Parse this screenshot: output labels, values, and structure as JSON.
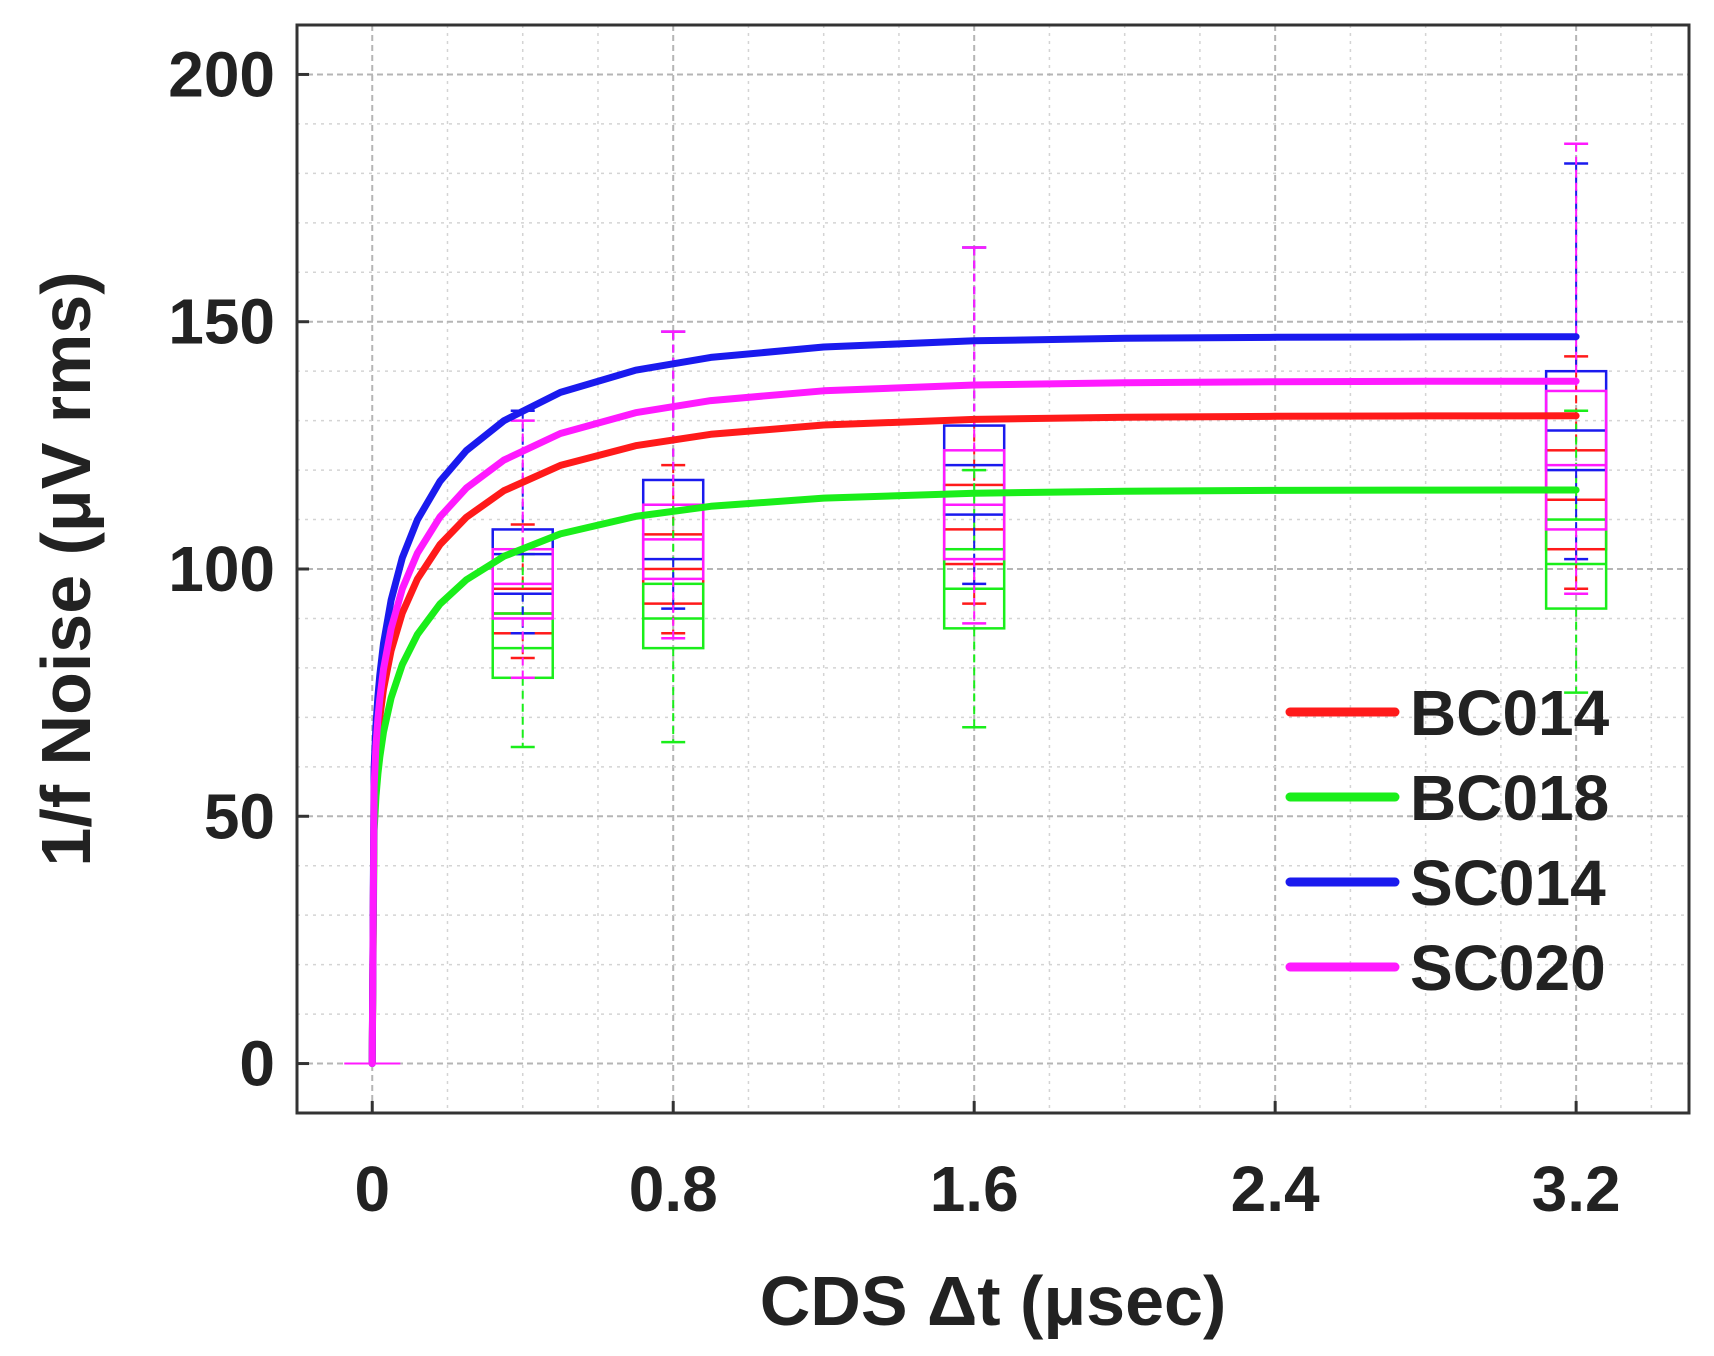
{
  "chart_data": {
    "type": "line",
    "title": "",
    "xlabel": "CDS Δt (μsec)",
    "ylabel": "1/f Noise (μV rms)",
    "xlim": [
      -0.2,
      3.5
    ],
    "ylim": [
      -10,
      210
    ],
    "x_ticks": [
      0,
      0.8,
      1.6,
      2.4,
      3.2
    ],
    "x_tick_labels": [
      "0",
      "0.8",
      "1.6",
      "2.4",
      "3.2"
    ],
    "y_ticks": [
      0,
      50,
      100,
      150,
      200
    ],
    "y_tick_labels": [
      "0",
      "50",
      "100",
      "150",
      "200"
    ],
    "grid": true,
    "legend_position": "bottom-right",
    "fit_curve_points": [
      0.005,
      0.01,
      0.015,
      0.02,
      0.03,
      0.05,
      0.08,
      0.12,
      0.18,
      0.25,
      0.35,
      0.5,
      0.7,
      0.9,
      1.2,
      1.6,
      2.0,
      2.4,
      2.8,
      3.2
    ],
    "box_x": [
      0.4,
      0.8,
      1.6,
      3.2
    ],
    "series": [
      {
        "name": "BC014",
        "color": "#ff1a1a",
        "fit": {
          "model": "saturating",
          "plateau": 131,
          "tau": 0.45,
          "beta": 0.2
        },
        "boxes": [
          {
            "x": 0.4,
            "whisker_low": 82,
            "q1": 87,
            "median": 91,
            "q3": 96,
            "whisker_high": 109
          },
          {
            "x": 0.8,
            "whisker_low": 87,
            "q1": 93,
            "median": 100,
            "q3": 107,
            "whisker_high": 121
          },
          {
            "x": 1.6,
            "whisker_low": 93,
            "q1": 101,
            "median": 108,
            "q3": 117,
            "whisker_high": 130
          },
          {
            "x": 3.2,
            "whisker_low": 96,
            "q1": 104,
            "median": 114,
            "q3": 124,
            "whisker_high": 143
          }
        ]
      },
      {
        "name": "BC018",
        "color": "#1aee1a",
        "fit": {
          "model": "saturating",
          "plateau": 116,
          "tau": 0.45,
          "beta": 0.2
        },
        "boxes": [
          {
            "x": 0.4,
            "whisker_low": 64,
            "q1": 78,
            "median": 84,
            "q3": 91,
            "whisker_high": 103
          },
          {
            "x": 0.8,
            "whisker_low": 65,
            "q1": 84,
            "median": 90,
            "q3": 97,
            "whisker_high": 113
          },
          {
            "x": 1.6,
            "whisker_low": 68,
            "q1": 88,
            "median": 96,
            "q3": 104,
            "whisker_high": 120
          },
          {
            "x": 3.2,
            "whisker_low": 75,
            "q1": 92,
            "median": 101,
            "q3": 110,
            "whisker_high": 132
          }
        ]
      },
      {
        "name": "SC014",
        "color": "#1a1aee",
        "fit": {
          "model": "saturating",
          "plateau": 147,
          "tau": 0.45,
          "beta": 0.2
        },
        "boxes": [
          {
            "x": 0.4,
            "whisker_low": 87,
            "q1": 95,
            "median": 103,
            "q3": 108,
            "whisker_high": 132
          },
          {
            "x": 0.8,
            "whisker_low": 92,
            "q1": 102,
            "median": 113,
            "q3": 118,
            "whisker_high": 148
          },
          {
            "x": 1.6,
            "whisker_low": 97,
            "q1": 111,
            "median": 121,
            "q3": 129,
            "whisker_high": 165
          },
          {
            "x": 3.2,
            "whisker_low": 102,
            "q1": 120,
            "median": 128,
            "q3": 140,
            "whisker_high": 182
          }
        ]
      },
      {
        "name": "SC020",
        "color": "#ff1aff",
        "fit": {
          "model": "saturating",
          "plateau": 138,
          "tau": 0.45,
          "beta": 0.2
        },
        "boxes": [
          {
            "x": 0.4,
            "whisker_low": 78,
            "q1": 90,
            "median": 97,
            "q3": 104,
            "whisker_high": 130
          },
          {
            "x": 0.8,
            "whisker_low": 86,
            "q1": 98,
            "median": 106,
            "q3": 113,
            "whisker_high": 148
          },
          {
            "x": 1.6,
            "whisker_low": 89,
            "q1": 102,
            "median": 113,
            "q3": 124,
            "whisker_high": 165
          },
          {
            "x": 3.2,
            "whisker_low": 95,
            "q1": 108,
            "median": 121,
            "q3": 136,
            "whisker_high": 186
          }
        ]
      }
    ]
  }
}
